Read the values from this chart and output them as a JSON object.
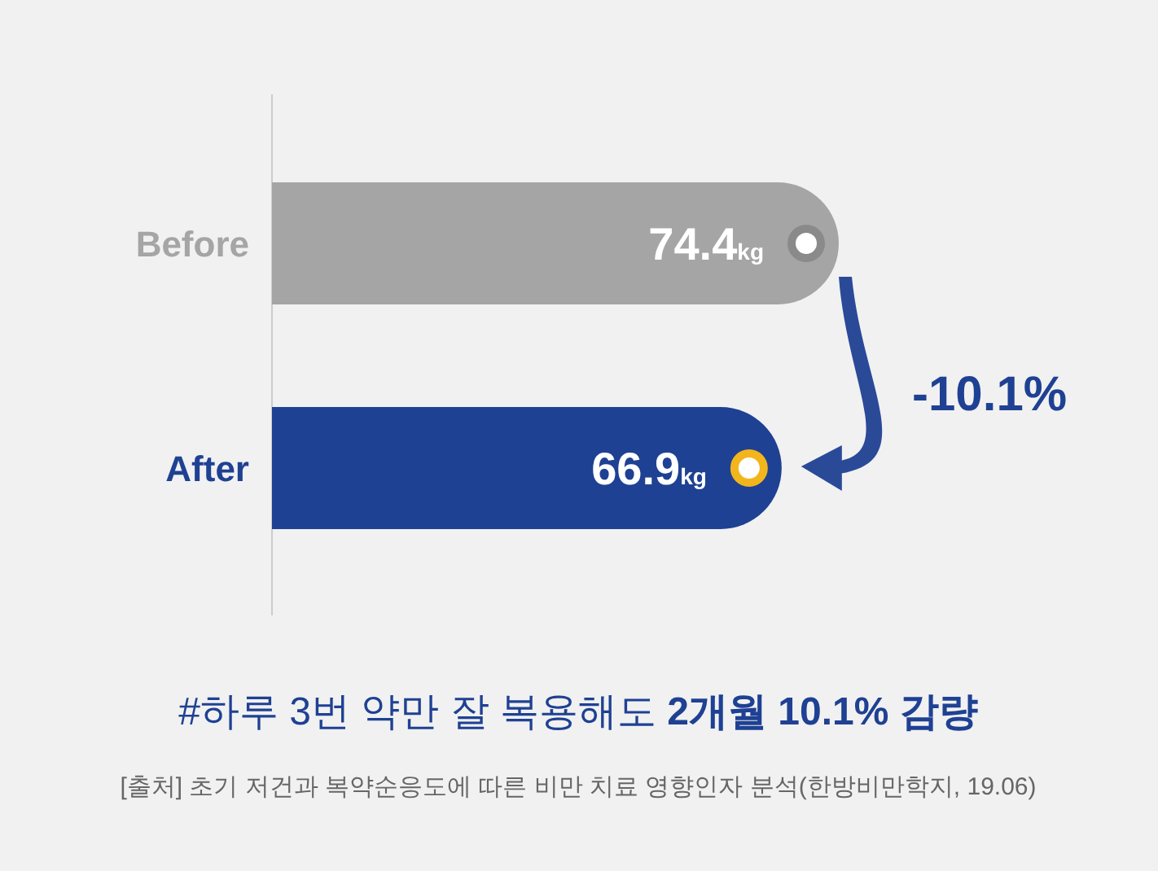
{
  "chart_data": {
    "type": "bar",
    "orientation": "horizontal",
    "title": "#하루 3번 약만 잘 복용해도 **2개월 10.1% 감량**",
    "categories": [
      "Before",
      "After"
    ],
    "values": [
      74.4,
      66.9
    ],
    "colors": [
      "#a5a5a5",
      "#1f4193"
    ],
    "value_labels": [
      "74.4kg",
      "66.9kg"
    ],
    "annotations": [
      "-10.1%",
      "[출처] 초기 저건과 복약순응도에 따른 비만 치료 영향인자 분석(한방비만학지, 19.06)"
    ]
  }
}
